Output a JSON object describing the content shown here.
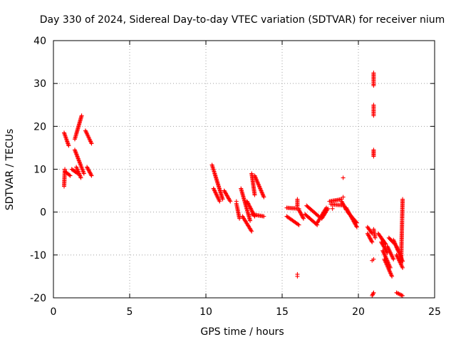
{
  "chart_data": {
    "type": "scatter",
    "title": "Day 330 of 2024, Sidereal Day-to-day VTEC variation (SDTVAR) for receiver nium",
    "xlabel": "GPS time / hours",
    "ylabel": "SDTVAR / TECUs",
    "xlim": [
      0,
      25
    ],
    "ylim": [
      -20,
      40
    ],
    "xticks": [
      0,
      5,
      10,
      15,
      20,
      25
    ],
    "yticks": [
      -20,
      -10,
      0,
      10,
      20,
      30,
      40
    ],
    "xtick_labels": [
      "0",
      "5",
      "10",
      "15",
      "20",
      "25"
    ],
    "ytick_labels": [
      "-20",
      "-10",
      "0",
      "10",
      "20",
      "30",
      "40"
    ],
    "grid": true,
    "marker": "plus",
    "color": "#ff0000",
    "segments": [
      {
        "x0": 0.7,
        "y0": 18.5,
        "x1": 1.0,
        "y1": 15.5
      },
      {
        "x0": 0.7,
        "y0": 6.0,
        "x1": 0.75,
        "y1": 10.0
      },
      {
        "x0": 0.75,
        "y0": 9.5,
        "x1": 1.1,
        "y1": 8.5
      },
      {
        "x0": 1.2,
        "y0": 10.0,
        "x1": 1.6,
        "y1": 9.0
      },
      {
        "x0": 1.4,
        "y0": 17.0,
        "x1": 1.85,
        "y1": 22.5
      },
      {
        "x0": 1.4,
        "y0": 14.5,
        "x1": 2.0,
        "y1": 9.0
      },
      {
        "x0": 1.5,
        "y0": 10.5,
        "x1": 1.8,
        "y1": 8.0
      },
      {
        "x0": 2.1,
        "y0": 19.0,
        "x1": 2.5,
        "y1": 16.0
      },
      {
        "x0": 2.2,
        "y0": 10.5,
        "x1": 2.5,
        "y1": 8.5
      },
      {
        "x0": 10.4,
        "y0": 11.0,
        "x1": 11.1,
        "y1": 3.0
      },
      {
        "x0": 10.5,
        "y0": 5.5,
        "x1": 10.9,
        "y1": 2.5
      },
      {
        "x0": 11.2,
        "y0": 5.0,
        "x1": 11.6,
        "y1": 2.5
      },
      {
        "x0": 12.0,
        "y0": 2.0,
        "x1": 12.2,
        "y1": -1.5
      },
      {
        "x0": 12.3,
        "y0": 5.5,
        "x1": 12.9,
        "y1": -2.0
      },
      {
        "x0": 12.4,
        "y0": -1.0,
        "x1": 13.0,
        "y1": -4.5
      },
      {
        "x0": 12.7,
        "y0": 2.5,
        "x1": 13.2,
        "y1": -1.0
      },
      {
        "x0": 13.0,
        "y0": 9.0,
        "x1": 13.2,
        "y1": 4.0
      },
      {
        "x0": 13.2,
        "y0": 8.5,
        "x1": 13.8,
        "y1": 3.5
      },
      {
        "x0": 13.0,
        "y0": -0.5,
        "x1": 13.8,
        "y1": -1.0
      },
      {
        "x0": 15.3,
        "y0": 1.0,
        "x1": 16.1,
        "y1": 0.8
      },
      {
        "x0": 15.3,
        "y0": -1.0,
        "x1": 16.1,
        "y1": -3.0
      },
      {
        "x0": 16.0,
        "y0": 1.5,
        "x1": 16.0,
        "y1": 3.0
      },
      {
        "x0": 16.1,
        "y0": 0.5,
        "x1": 16.4,
        "y1": -1.5
      },
      {
        "x0": 16.5,
        "y0": -0.5,
        "x1": 17.3,
        "y1": -3.0
      },
      {
        "x0": 16.6,
        "y0": 1.5,
        "x1": 17.4,
        "y1": -1.0
      },
      {
        "x0": 17.3,
        "y0": -2.5,
        "x1": 17.9,
        "y1": 1.0
      },
      {
        "x0": 17.6,
        "y0": -1.5,
        "x1": 18.0,
        "y1": 0.8
      },
      {
        "x0": 18.1,
        "y0": 2.5,
        "x1": 18.9,
        "y1": 3.0
      },
      {
        "x0": 18.2,
        "y0": 1.8,
        "x1": 18.9,
        "y1": 1.6
      },
      {
        "x0": 18.9,
        "y0": 2.5,
        "x1": 19.2,
        "y1": 0.5
      },
      {
        "x0": 19.2,
        "y0": 1.0,
        "x1": 19.9,
        "y1": -3.5
      },
      {
        "x0": 19.3,
        "y0": 0.0,
        "x1": 19.9,
        "y1": -2.5
      },
      {
        "x0": 20.6,
        "y0": -3.5,
        "x1": 20.9,
        "y1": -5.0
      },
      {
        "x0": 20.6,
        "y0": -5.0,
        "x1": 20.9,
        "y1": -7.0
      },
      {
        "x0": 21.0,
        "y0": -4.0,
        "x1": 21.1,
        "y1": -6.0
      },
      {
        "x0": 21.3,
        "y0": -5.0,
        "x1": 21.8,
        "y1": -7.5
      },
      {
        "x0": 21.5,
        "y0": -7.0,
        "x1": 21.9,
        "y1": -9.5
      },
      {
        "x0": 21.6,
        "y0": -9.0,
        "x1": 22.1,
        "y1": -13.0
      },
      {
        "x0": 21.7,
        "y0": -11.0,
        "x1": 22.2,
        "y1": -15.0
      },
      {
        "x0": 21.9,
        "y0": -8.0,
        "x1": 22.3,
        "y1": -11.0
      },
      {
        "x0": 22.0,
        "y0": -6.0,
        "x1": 22.4,
        "y1": -7.5
      },
      {
        "x0": 22.3,
        "y0": -6.5,
        "x1": 22.6,
        "y1": -9.0
      },
      {
        "x0": 22.5,
        "y0": -8.0,
        "x1": 22.9,
        "y1": -11.5
      },
      {
        "x0": 22.5,
        "y0": -10.0,
        "x1": 22.9,
        "y1": -13.0
      },
      {
        "x0": 22.8,
        "y0": -12.0,
        "x1": 22.9,
        "y1": 3.0
      },
      {
        "x0": 21.0,
        "y0": 29.5,
        "x1": 21.0,
        "y1": 32.5
      },
      {
        "x0": 21.0,
        "y0": 22.5,
        "x1": 21.0,
        "y1": 25.0
      },
      {
        "x0": 21.0,
        "y0": 13.0,
        "x1": 21.0,
        "y1": 14.5
      },
      {
        "x0": 20.9,
        "y0": -19.5,
        "x1": 21.0,
        "y1": -18.8
      },
      {
        "x0": 22.5,
        "y0": -18.8,
        "x1": 22.9,
        "y1": -19.5
      }
    ],
    "points": [
      {
        "x": 16.0,
        "y": -15.0
      },
      {
        "x": 16.0,
        "y": -14.5
      },
      {
        "x": 19.0,
        "y": 8.0
      },
      {
        "x": 19.0,
        "y": 3.5
      },
      {
        "x": 21.0,
        "y": -11.0
      },
      {
        "x": 20.9,
        "y": -11.3
      },
      {
        "x": 12.0,
        "y": 2.5
      },
      {
        "x": 18.3,
        "y": 0.8
      }
    ]
  }
}
